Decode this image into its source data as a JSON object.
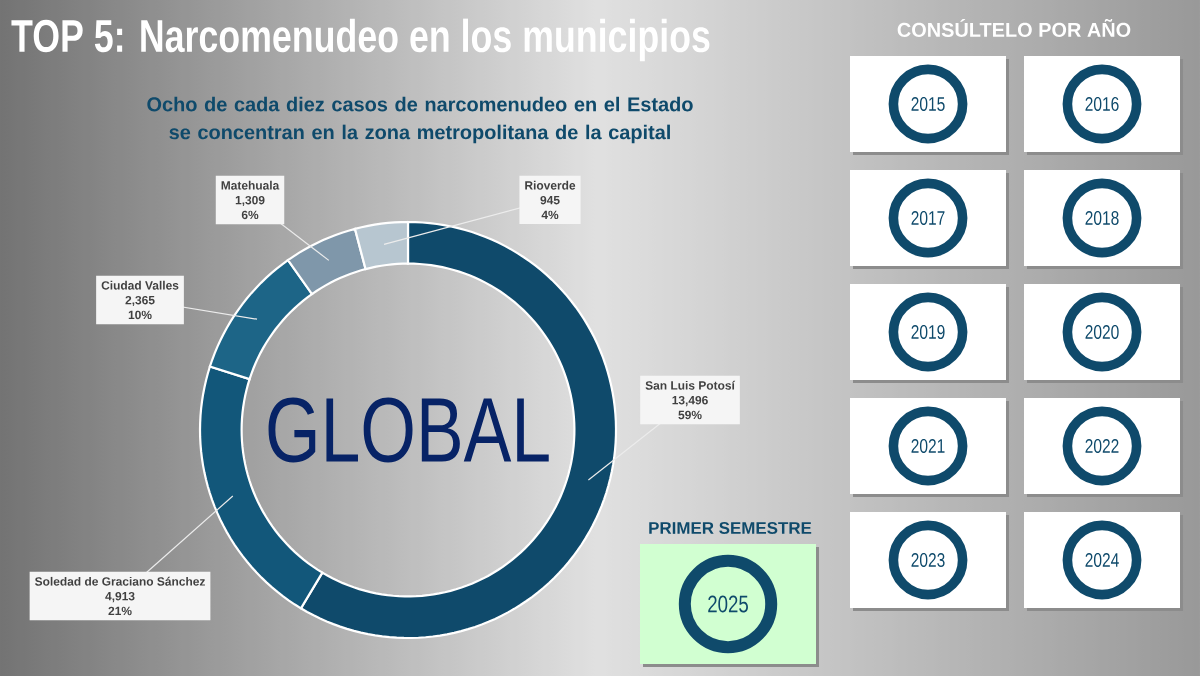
{
  "chart_data": {
    "type": "donut",
    "title": "TOP 5: Narcomenudeo en los municipios",
    "subtitle": "Ocho de cada diez casos de narcomenudeo en el Estado se concentran en la zona metropolitana de la capital",
    "categories": [
      "San Luis Potosí",
      "Soledad de Graciano Sánchez",
      "Ciudad Valles",
      "Matehuala",
      "Rioverde"
    ],
    "values": [
      13496,
      4913,
      2365,
      1309,
      945
    ],
    "colors": [
      "#0f4a6b",
      "#12577a",
      "#1d6587",
      "#7f97aa",
      "#b7c6d0"
    ],
    "value_labels": [
      "13,496",
      "4,913",
      "2,365",
      "1,309",
      "945"
    ],
    "annotations": [
      "59%",
      "21%",
      "10%",
      "6%",
      "4%",
      "GLOBAL",
      "CONSÚLTELO POR AÑO",
      "2015",
      "2016",
      "2017",
      "2018",
      "2019",
      "2020",
      "2021",
      "2022",
      "2023",
      "2024",
      "PRIMER SEMESTRE",
      "2025"
    ]
  }
}
